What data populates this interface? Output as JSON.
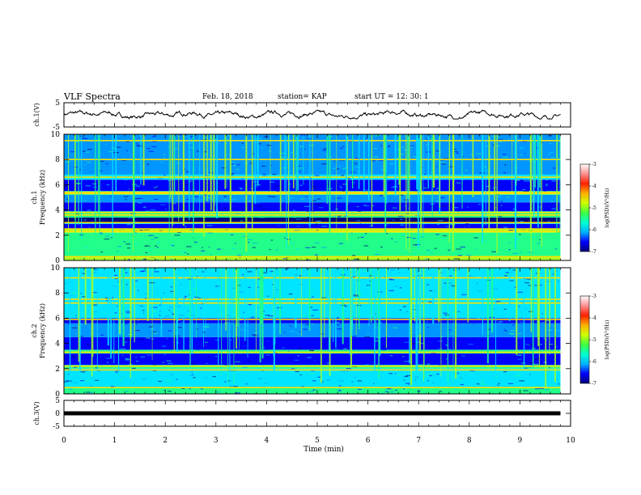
{
  "header": {
    "title": "VLF Spectra",
    "date": "Feb. 18, 2018",
    "station": "station= KAP",
    "start": "start  UT  =   12: 30: 1"
  },
  "colors": {
    "frame": "#000000",
    "trace": "#000000",
    "colormap": [
      "#00007a",
      "#0000ff",
      "#0096ff",
      "#00e5ff",
      "#21ff8a",
      "#a6ff21",
      "#ffe000",
      "#ff7000",
      "#ff0000",
      "#ffffff"
    ]
  },
  "chart_data": [
    {
      "type": "line",
      "name": "channel-1-waveform",
      "ylabel": "ch.1(V)",
      "ylim": [
        -5,
        5
      ],
      "yticks": [
        "5",
        "-5"
      ],
      "xlim": [
        0,
        10
      ],
      "series": [
        {
          "values_description_free": true,
          "mean": 0,
          "amplitude_range": [
            -1.7,
            1.9
          ]
        }
      ]
    },
    {
      "type": "heatmap",
      "name": "channel-1-spectrogram",
      "ylabel_line1": "ch.1",
      "ylabel_line2": "Frequency (kHz)",
      "ylim": [
        0,
        10
      ],
      "yticks": [
        "0",
        "2",
        "4",
        "6",
        "8",
        "10"
      ],
      "xlim": [
        0,
        10
      ],
      "data_end_min": 9.8,
      "bands": [
        {
          "from": 0.0,
          "to": 0.3,
          "level": 5
        },
        {
          "from": 0.3,
          "to": 2.2,
          "level": 4
        },
        {
          "from": 2.2,
          "to": 2.5,
          "level": 5
        },
        {
          "from": 2.5,
          "to": 2.9,
          "level": 1
        },
        {
          "from": 2.9,
          "to": 3.0,
          "level": 3
        },
        {
          "from": 3.0,
          "to": 3.4,
          "level": 0
        },
        {
          "from": 3.4,
          "to": 3.9,
          "level": 4
        },
        {
          "from": 3.9,
          "to": 4.6,
          "level": 1
        },
        {
          "from": 4.6,
          "to": 5.2,
          "level": 2
        },
        {
          "from": 5.2,
          "to": 5.5,
          "level": 4
        },
        {
          "from": 5.5,
          "to": 6.4,
          "level": 1
        },
        {
          "from": 6.4,
          "to": 6.8,
          "level": 3
        },
        {
          "from": 6.8,
          "to": 10.0,
          "level": 2
        }
      ],
      "lines": [
        0.3,
        2.3,
        2.5,
        3.0,
        3.6,
        3.8,
        5.3,
        5.4,
        6.6,
        8.0,
        9.5
      ],
      "colorbar": {
        "label": "log(PSD)(V²/Hz)",
        "range": [
          -7,
          -3
        ],
        "ticks": [
          "-3",
          "-4",
          "-5",
          "-6",
          "-7"
        ]
      }
    },
    {
      "type": "heatmap",
      "name": "channel-2-spectrogram",
      "ylabel_line1": "ch.2",
      "ylabel_line2": "Frequency (kHz)",
      "ylim": [
        0,
        10
      ],
      "yticks": [
        "0",
        "2",
        "4",
        "6",
        "8",
        "10"
      ],
      "xlim": [
        0,
        10
      ],
      "data_end_min": 9.8,
      "bands": [
        {
          "from": 0.0,
          "to": 0.5,
          "level": 4
        },
        {
          "from": 0.5,
          "to": 2.0,
          "level": 3
        },
        {
          "from": 2.0,
          "to": 2.3,
          "level": 4
        },
        {
          "from": 2.3,
          "to": 3.2,
          "level": 1
        },
        {
          "from": 3.2,
          "to": 3.5,
          "level": 4
        },
        {
          "from": 3.5,
          "to": 4.5,
          "level": 1
        },
        {
          "from": 4.5,
          "to": 5.6,
          "level": 2
        },
        {
          "from": 5.6,
          "to": 6.0,
          "level": 1
        },
        {
          "from": 6.0,
          "to": 10.0,
          "level": 3
        }
      ],
      "lines": [
        0.5,
        1.9,
        2.2,
        3.3,
        5.9,
        7.2,
        7.5,
        9.2
      ],
      "colorbar": {
        "label": "log(PSD)(V²/Hz)",
        "range": [
          -7,
          -3
        ],
        "ticks": [
          "-3",
          "-4",
          "-5",
          "-6",
          "-7"
        ]
      }
    },
    {
      "type": "line",
      "name": "channel-3-waveform",
      "ylabel": "ch.3(V)",
      "ylim": [
        -5,
        5
      ],
      "yticks": [
        "5",
        "0",
        "-5"
      ],
      "xlim": [
        0,
        10
      ],
      "series": [
        {
          "constant": 0
        }
      ]
    }
  ],
  "xaxis": {
    "label": "Time (min)",
    "ticks": [
      "0",
      "1",
      "2",
      "3",
      "4",
      "5",
      "6",
      "7",
      "8",
      "9",
      "10"
    ]
  }
}
